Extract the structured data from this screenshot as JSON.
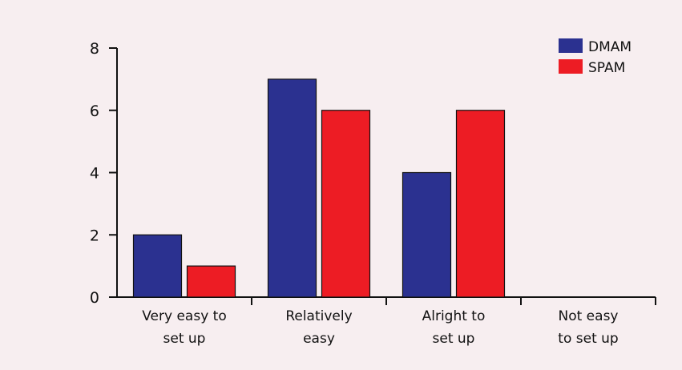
{
  "chart_data": {
    "type": "bar",
    "categories": [
      [
        "Very easy to",
        "set up"
      ],
      [
        "Relatively",
        "easy"
      ],
      [
        "Alright to",
        "set up"
      ],
      [
        "Not easy",
        "to set up"
      ]
    ],
    "series": [
      {
        "name": "DMAM",
        "values": [
          2,
          7,
          4,
          0
        ],
        "color": "#2b3190"
      },
      {
        "name": "SPAM",
        "values": [
          1,
          6,
          6,
          0
        ],
        "color": "#ed1c24"
      }
    ],
    "ylim": [
      0,
      8
    ],
    "yticks": [
      "0",
      "2",
      "4",
      "6",
      "8"
    ],
    "grid": false,
    "legend_position": "top-right",
    "background": "#f7eef0"
  }
}
